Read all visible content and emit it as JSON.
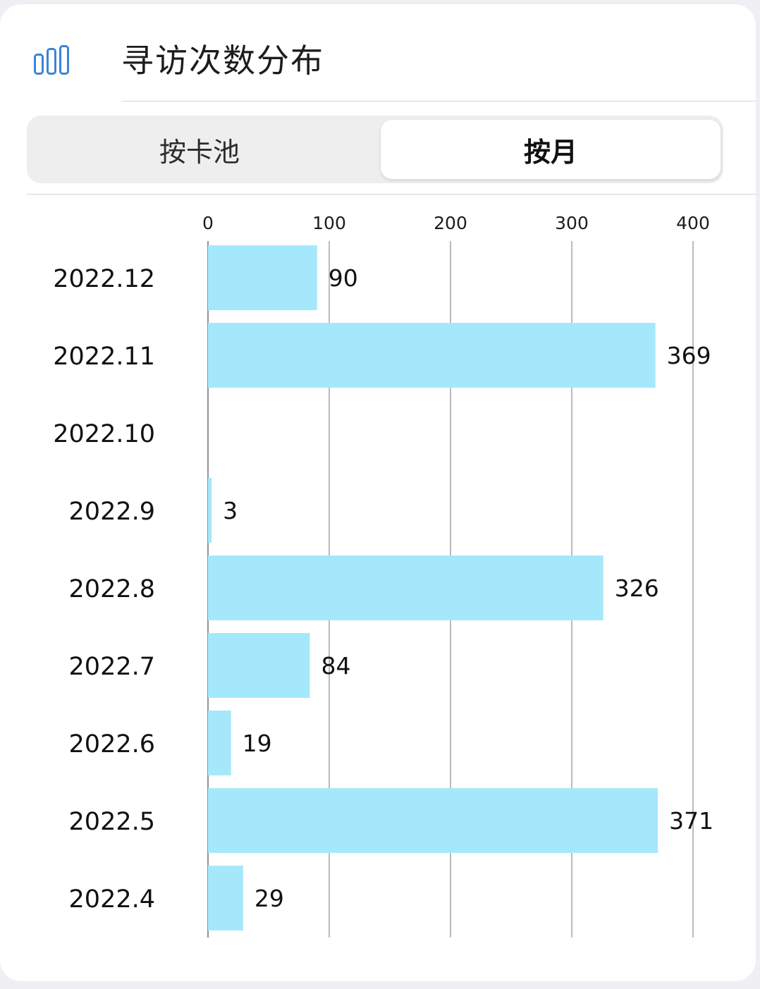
{
  "header": {
    "icon": "bar-chart-icon",
    "title": "寻访次数分布"
  },
  "tabs": [
    {
      "label": "按卡池",
      "active": false
    },
    {
      "label": "按月",
      "active": true
    }
  ],
  "colors": {
    "bar": "#a6e8fb",
    "accent": "#3b82d6",
    "gridline": "#8e8e93"
  },
  "chart_data": {
    "type": "bar",
    "orientation": "horizontal",
    "categories": [
      "2022.12",
      "2022.11",
      "2022.10",
      "2022.9",
      "2022.8",
      "2022.7",
      "2022.6",
      "2022.5",
      "2022.4"
    ],
    "values": [
      90,
      369,
      null,
      3,
      326,
      84,
      19,
      371,
      29
    ],
    "value_labels": [
      "90",
      "369",
      "",
      "3",
      "326",
      "84",
      "19",
      "371",
      "29"
    ],
    "xlim": [
      0,
      400
    ],
    "xticks": [
      0,
      100,
      200,
      300,
      400
    ],
    "xtick_labels": [
      "0",
      "100",
      "200",
      "300",
      "400"
    ],
    "axis_position": "top",
    "grid": true
  }
}
